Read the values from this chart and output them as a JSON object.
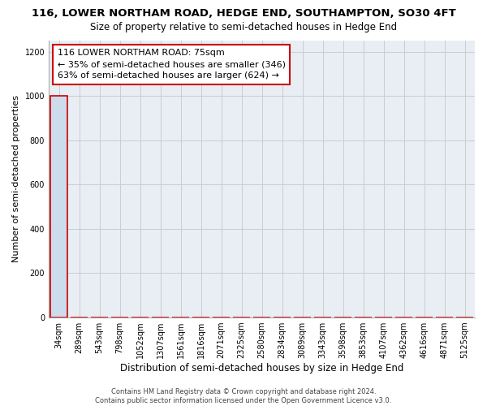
{
  "title": "116, LOWER NORTHAM ROAD, HEDGE END, SOUTHAMPTON, SO30 4FT",
  "subtitle": "Size of property relative to semi-detached houses in Hedge End",
  "xlabel": "Distribution of semi-detached houses by size in Hedge End",
  "ylabel": "Number of semi-detached properties",
  "categories": [
    "34sqm",
    "289sqm",
    "543sqm",
    "798sqm",
    "1052sqm",
    "1307sqm",
    "1561sqm",
    "1816sqm",
    "2071sqm",
    "2325sqm",
    "2580sqm",
    "2834sqm",
    "3089sqm",
    "3343sqm",
    "3598sqm",
    "3853sqm",
    "4107sqm",
    "4362sqm",
    "4616sqm",
    "4871sqm",
    "5125sqm"
  ],
  "bar_values": [
    1000,
    0,
    0,
    0,
    0,
    0,
    0,
    0,
    0,
    0,
    0,
    0,
    0,
    0,
    0,
    0,
    0,
    0,
    0,
    0,
    0
  ],
  "bar_color": "#ccdcec",
  "bar_edge_color": "#cc0000",
  "annotation_box_text": "116 LOWER NORTHAM ROAD: 75sqm\n← 35% of semi-detached houses are smaller (346)\n63% of semi-detached houses are larger (624) →",
  "ylim": [
    0,
    1250
  ],
  "yticks": [
    0,
    200,
    400,
    600,
    800,
    1000,
    1200
  ],
  "grid_color": "#cccccc",
  "background_color": "#e8eef4",
  "footnote": "Contains HM Land Registry data © Crown copyright and database right 2024.\nContains public sector information licensed under the Open Government Licence v3.0.",
  "title_fontsize": 9.5,
  "subtitle_fontsize": 8.5,
  "xlabel_fontsize": 8.5,
  "ylabel_fontsize": 8,
  "tick_fontsize": 7,
  "annotation_fontsize": 8,
  "footnote_fontsize": 6
}
